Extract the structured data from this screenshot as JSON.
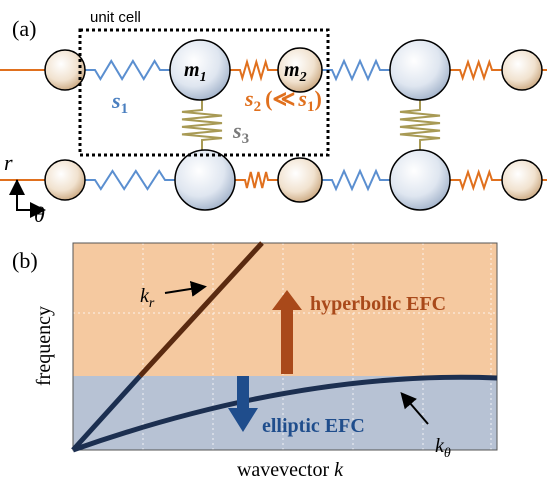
{
  "panel_a": {
    "label": "(a)",
    "unit_cell": "unit cell",
    "m1": {
      "base": "m",
      "sub": "1"
    },
    "m2": {
      "base": "m",
      "sub": "2"
    },
    "s1": {
      "base": "s",
      "sub": "1"
    },
    "s2": {
      "base": "s",
      "sub": "2",
      "open": "(≪",
      "rel_base": "s",
      "rel_sub": "1",
      "close": ")"
    },
    "s3": {
      "base": "s",
      "sub": "3"
    },
    "axis_r": "r",
    "axis_theta": "θ"
  },
  "panel_b": {
    "label": "(b)",
    "y_label": "frequency",
    "x_label": "wavevector",
    "x_symbol": "k",
    "k_r": {
      "base": "k",
      "sub": "r"
    },
    "k_theta": {
      "base": "k",
      "sub": "θ"
    },
    "upper_region": "hyperbolic EFC",
    "lower_region": "elliptic EFC"
  }
}
